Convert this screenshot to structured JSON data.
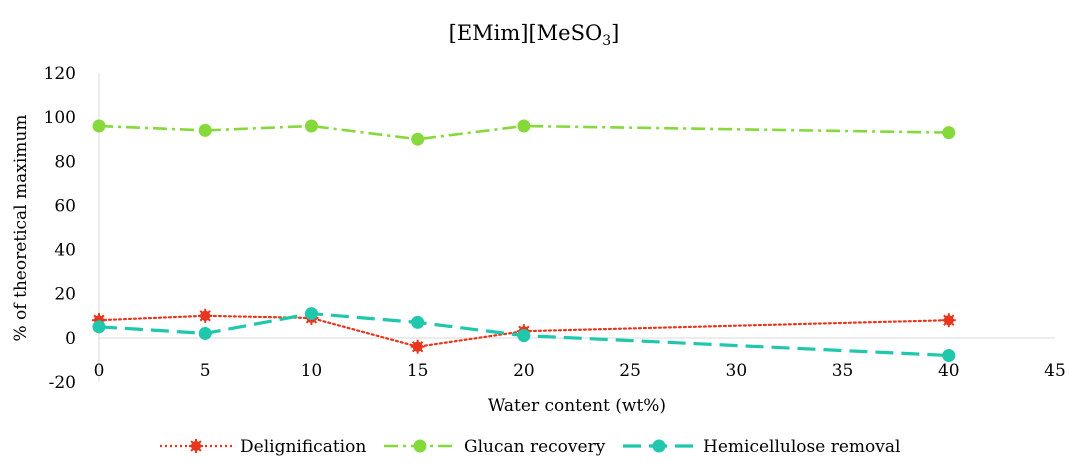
{
  "chart_data": {
    "type": "line",
    "title": "[EMim][MeSO3]",
    "title_main": "[EMim][MeSO",
    "title_sub": "3",
    "title_end": "]",
    "xlabel": "Water content (wt%)",
    "ylabel": "% of theoretical maximum",
    "xlim": [
      0,
      45
    ],
    "ylim": [
      -20,
      120
    ],
    "xticks": [
      "0",
      "5",
      "10",
      "15",
      "20",
      "25",
      "30",
      "35",
      "40",
      "45"
    ],
    "yticks": [
      "-20",
      "0",
      "20",
      "40",
      "60",
      "80",
      "100",
      "120"
    ],
    "grid": false,
    "legend_position": "bottom",
    "x": [
      0,
      5,
      10,
      15,
      20,
      40
    ],
    "series": [
      {
        "name": "Delignification",
        "values": [
          8,
          10,
          9,
          -4,
          3,
          8
        ],
        "color": "#e8361e",
        "dash": "dotted"
      },
      {
        "name": "Glucan recovery",
        "values": [
          96,
          94,
          96,
          90,
          96,
          93
        ],
        "color": "#86d93b",
        "dash": "dash-dot"
      },
      {
        "name": "Hemicellulose removal",
        "values": [
          5,
          2,
          11,
          7,
          1,
          -8
        ],
        "color": "#1fc7ac",
        "dash": "dashed"
      }
    ]
  }
}
